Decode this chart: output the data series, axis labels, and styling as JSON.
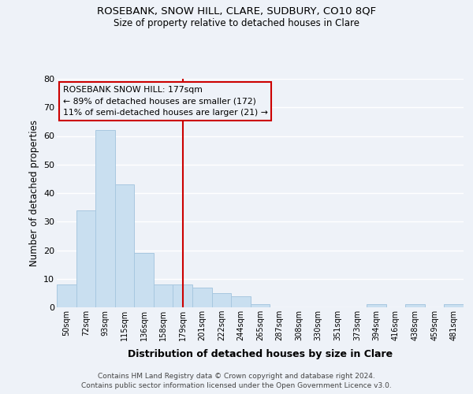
{
  "title1": "ROSEBANK, SNOW HILL, CLARE, SUDBURY, CO10 8QF",
  "title2": "Size of property relative to detached houses in Clare",
  "xlabel": "Distribution of detached houses by size in Clare",
  "ylabel": "Number of detached properties",
  "categories": [
    "50sqm",
    "72sqm",
    "93sqm",
    "115sqm",
    "136sqm",
    "158sqm",
    "179sqm",
    "201sqm",
    "222sqm",
    "244sqm",
    "265sqm",
    "287sqm",
    "308sqm",
    "330sqm",
    "351sqm",
    "373sqm",
    "394sqm",
    "416sqm",
    "438sqm",
    "459sqm",
    "481sqm"
  ],
  "values": [
    8,
    34,
    62,
    43,
    19,
    8,
    8,
    7,
    5,
    4,
    1,
    0,
    0,
    0,
    0,
    0,
    1,
    0,
    1,
    0,
    1
  ],
  "bar_color": "#c9dff0",
  "bar_edge_color": "#a8c8e0",
  "vline_x_index": 6,
  "vline_color": "#cc0000",
  "annotation_title": "ROSEBANK SNOW HILL: 177sqm",
  "annotation_line1": "← 89% of detached houses are smaller (172)",
  "annotation_line2": "11% of semi-detached houses are larger (21) →",
  "annotation_box_edge": "#cc0000",
  "ylim": [
    0,
    80
  ],
  "yticks": [
    0,
    10,
    20,
    30,
    40,
    50,
    60,
    70,
    80
  ],
  "background_color": "#eef2f8",
  "grid_color": "#ffffff",
  "footer1": "Contains HM Land Registry data © Crown copyright and database right 2024.",
  "footer2": "Contains public sector information licensed under the Open Government Licence v3.0."
}
